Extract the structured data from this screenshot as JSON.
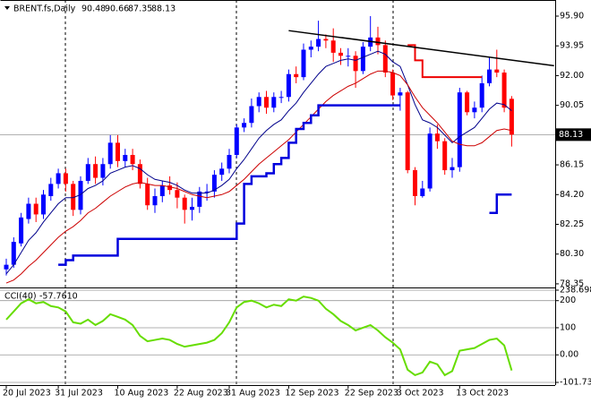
{
  "chart_data": [
    {
      "type": "candlestick",
      "title": "BRENT.fs,Daily",
      "categories": [
        "20 Jul 2023",
        null,
        null,
        null,
        null,
        null,
        null,
        "31 Jul 2023",
        null,
        null,
        null,
        null,
        null,
        null,
        null,
        "10 Aug 2023",
        null,
        null,
        null,
        null,
        null,
        null,
        null,
        "22 Aug 2023",
        null,
        null,
        null,
        null,
        null,
        null,
        "31 Aug 2023",
        null,
        null,
        null,
        null,
        null,
        null,
        null,
        "12 Sep 2023",
        null,
        null,
        null,
        null,
        null,
        null,
        null,
        "22 Sep 2023",
        null,
        null,
        null,
        null,
        null,
        null,
        "3 Oct 2023",
        null,
        null,
        null,
        null,
        null,
        null,
        null,
        "13 Oct 2023",
        null,
        null,
        null,
        null,
        null,
        null,
        null
      ],
      "open": [
        79.3,
        79.6,
        81.0,
        82.6,
        83.6,
        82.9,
        84.1,
        84.9,
        85.6,
        84.9,
        83.2,
        85.1,
        86.2,
        85.3,
        86.2,
        87.6,
        86.4,
        86.8,
        86.2,
        84.9,
        83.5,
        84.1,
        84.8,
        84.5,
        84.0,
        83.2,
        83.4,
        84.4,
        84.4,
        85.5,
        85.9,
        86.8,
        88.6,
        88.9,
        90.0,
        90.6,
        89.9,
        90.6,
        90.6,
        92.1,
        91.9,
        93.7,
        93.9,
        94.4,
        94.3,
        93.5,
        93.3,
        93.3,
        92.3,
        93.9,
        94.5,
        94.0,
        92.2,
        90.7,
        90.9,
        85.8,
        84.1,
        84.6,
        88.2,
        87.7,
        85.8,
        86.0,
        90.9,
        89.6,
        89.9,
        91.5,
        92.4,
        92.2,
        90.48
      ],
      "high": [
        80.0,
        81.4,
        83.0,
        84.0,
        84.0,
        84.5,
        85.3,
        85.9,
        85.9,
        85.1,
        85.4,
        86.6,
        86.7,
        86.6,
        88.1,
        88.1,
        87.2,
        87.2,
        86.5,
        85.3,
        84.6,
        85.1,
        85.4,
        85.0,
        84.2,
        84.0,
        84.7,
        84.9,
        85.8,
        86.3,
        87.2,
        88.8,
        89.2,
        90.5,
        90.9,
        91.0,
        90.9,
        91.0,
        92.4,
        92.6,
        94.1,
        94.3,
        95.6,
        94.7,
        95.1,
        93.8,
        93.8,
        93.6,
        94.2,
        95.9,
        95.2,
        94.3,
        92.4,
        91.2,
        91.0,
        86.0,
        85.1,
        88.6,
        88.8,
        87.9,
        86.6,
        91.2,
        91.0,
        90.3,
        92.0,
        93.2,
        93.7,
        92.4,
        90.66
      ],
      "low": [
        78.9,
        79.4,
        80.8,
        82.3,
        82.4,
        82.6,
        83.8,
        84.6,
        84.4,
        82.8,
        82.9,
        84.9,
        84.9,
        84.8,
        85.9,
        86.0,
        86.0,
        85.8,
        84.6,
        83.2,
        83.0,
        83.7,
        84.2,
        83.3,
        82.3,
        82.5,
        83.0,
        83.8,
        84.0,
        85.1,
        85.6,
        86.6,
        88.3,
        88.6,
        89.6,
        89.5,
        89.6,
        90.2,
        90.3,
        91.5,
        91.7,
        93.2,
        93.6,
        93.8,
        92.9,
        92.7,
        92.6,
        91.2,
        92.1,
        93.6,
        93.4,
        91.9,
        90.4,
        89.7,
        85.6,
        83.5,
        84.0,
        84.4,
        87.2,
        85.5,
        85.3,
        85.7,
        89.4,
        89.2,
        89.6,
        91.3,
        91.9,
        89.6,
        87.35
      ],
      "close": [
        79.6,
        81.1,
        82.7,
        83.6,
        82.9,
        84.2,
        84.9,
        85.6,
        84.9,
        83.2,
        85.1,
        86.2,
        85.3,
        86.2,
        87.6,
        86.4,
        86.8,
        86.2,
        84.9,
        83.5,
        84.1,
        84.8,
        84.5,
        84.0,
        83.2,
        83.4,
        84.4,
        84.4,
        85.5,
        85.9,
        86.8,
        88.6,
        88.9,
        90.0,
        90.6,
        89.9,
        90.6,
        90.6,
        92.1,
        91.9,
        93.7,
        93.9,
        94.4,
        94.3,
        93.5,
        93.3,
        93.3,
        92.3,
        93.9,
        94.5,
        94.0,
        92.2,
        90.7,
        90.9,
        85.8,
        84.1,
        84.6,
        88.2,
        87.7,
        85.8,
        86.0,
        90.9,
        89.6,
        89.9,
        91.5,
        92.4,
        92.2,
        89.9,
        88.13
      ],
      "up_color": "#0000ff",
      "down_color": "#ff0000",
      "ylim": [
        78.17,
        96.84
      ],
      "yticks": [
        {
          "value": 95.9,
          "label": "95.90"
        },
        93.95,
        {
          "value": 92,
          "label": "92.00"
        },
        90.05,
        86.15,
        {
          "value": 84.2,
          "label": "84.20"
        },
        82.25,
        {
          "value": 80.3,
          "label": "80.30"
        },
        78.35
      ],
      "current_price": 88.13,
      "lines": [
        {
          "color": "#00008b",
          "width": 1,
          "step": false,
          "values": [
            79.0,
            79.6,
            80.4,
            81.2,
            81.7,
            82.4,
            83.0,
            83.6,
            84.0,
            84.0,
            84.2,
            84.6,
            84.8,
            85.1,
            85.6,
            85.8,
            86.0,
            86.1,
            85.9,
            85.5,
            85.2,
            85.1,
            85.0,
            84.8,
            84.5,
            84.3,
            84.3,
            84.3,
            84.5,
            84.8,
            85.2,
            85.9,
            86.5,
            87.2,
            87.9,
            88.4,
            88.8,
            89.1,
            89.7,
            90.2,
            90.9,
            91.5,
            92.1,
            92.6,
            92.8,
            93.0,
            93.1,
            93.0,
            93.2,
            93.4,
            93.6,
            93.4,
            92.9,
            92.6,
            91.4,
            90.1,
            89.1,
            88.9,
            88.6,
            88.1,
            87.6,
            88.0,
            88.3,
            88.6,
            89.2,
            89.8,
            90.2,
            90.1,
            89.7
          ]
        },
        {
          "color": "#cc0000",
          "width": 1,
          "step": false,
          "values": [
            78.4,
            78.6,
            79.0,
            79.5,
            79.9,
            80.4,
            80.9,
            81.4,
            81.8,
            82.1,
            82.5,
            83.0,
            83.3,
            83.7,
            84.1,
            84.4,
            84.7,
            84.9,
            85.0,
            84.9,
            84.8,
            84.8,
            84.7,
            84.6,
            84.4,
            84.2,
            84.1,
            84.0,
            84.1,
            84.2,
            84.4,
            84.8,
            85.2,
            85.7,
            86.2,
            86.6,
            87.0,
            87.4,
            87.8,
            88.3,
            88.8,
            89.3,
            89.8,
            90.3,
            90.7,
            91.0,
            91.3,
            91.5,
            91.8,
            92.1,
            92.3,
            92.3,
            92.2,
            92.0,
            91.4,
            90.6,
            89.9,
            89.4,
            88.9,
            88.3,
            87.7,
            87.5,
            87.4,
            87.4,
            87.6,
            88.0,
            88.4,
            88.5,
            88.4
          ]
        },
        {
          "color": "#0000dd",
          "width": 2.5,
          "step": true,
          "values": [
            null,
            null,
            null,
            null,
            null,
            null,
            null,
            79.6,
            79.9,
            80.2,
            80.2,
            80.2,
            80.2,
            80.2,
            80.2,
            81.3,
            81.3,
            81.3,
            81.3,
            81.3,
            81.3,
            81.3,
            81.3,
            81.3,
            81.3,
            81.3,
            81.3,
            81.3,
            81.3,
            81.3,
            81.3,
            82.3,
            84.9,
            85.4,
            85.4,
            85.6,
            86.2,
            86.6,
            87.6,
            88.5,
            88.9,
            89.4,
            90.05,
            90.05,
            90.05,
            90.05,
            90.05,
            90.05,
            90.05,
            90.05,
            90.05,
            90.05,
            90.05,
            90.05,
            null,
            null,
            null,
            null,
            null,
            null,
            null,
            null,
            null,
            null,
            null,
            83.0,
            84.2,
            84.2,
            84.2
          ]
        },
        {
          "color": "#ee0000",
          "width": 2,
          "step": true,
          "values": [
            null,
            null,
            null,
            null,
            null,
            null,
            null,
            null,
            null,
            null,
            null,
            null,
            null,
            null,
            null,
            null,
            null,
            null,
            null,
            null,
            null,
            null,
            null,
            null,
            null,
            null,
            null,
            null,
            null,
            null,
            null,
            null,
            null,
            null,
            null,
            null,
            null,
            null,
            null,
            null,
            null,
            null,
            null,
            null,
            null,
            null,
            null,
            null,
            null,
            null,
            null,
            null,
            null,
            null,
            94.0,
            93.0,
            91.9,
            91.9,
            91.9,
            91.9,
            91.9,
            91.9,
            91.9,
            91.9,
            91.9,
            null,
            null,
            null,
            null
          ]
        }
      ],
      "trendline": {
        "color": "#000000",
        "x": [
          38,
          73.7
        ],
        "values": [
          94.95,
          92.65
        ]
      }
    },
    {
      "type": "line",
      "title": "CCI(40)",
      "last": {
        "value": -57.761,
        "label": "-57.7610"
      },
      "color": "#66dd00",
      "values": [
        130,
        160,
        190,
        205,
        190,
        195,
        180,
        175,
        160,
        120,
        115,
        130,
        110,
        125,
        150,
        140,
        130,
        110,
        70,
        50,
        55,
        60,
        55,
        40,
        30,
        35,
        40,
        45,
        55,
        80,
        120,
        175,
        195,
        200,
        190,
        175,
        185,
        180,
        205,
        200,
        215,
        210,
        200,
        170,
        150,
        125,
        110,
        90,
        100,
        110,
        90,
        65,
        45,
        20,
        -55,
        -75,
        -65,
        -25,
        -35,
        -75,
        -60,
        15,
        20,
        25,
        40,
        55,
        60,
        35,
        -57.761
      ],
      "ylim": [
        -101.737,
        238.6987
      ],
      "yticks": [
        238.6987,
        200,
        100,
        {
          "value": 0,
          "label": "0.00"
        },
        -101.737
      ],
      "grid": true
    }
  ]
}
